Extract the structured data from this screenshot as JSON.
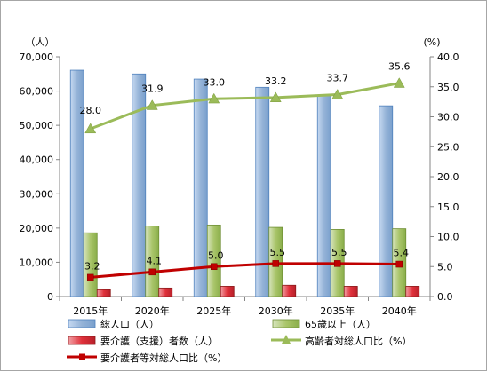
{
  "chart_data": {
    "type": "bar",
    "categories": [
      "2015年",
      "2020年",
      "2025年",
      "2030年",
      "2035年",
      "2040年"
    ],
    "y_left": {
      "unit": "（人）",
      "ylim": [
        0,
        70000
      ],
      "ticks": [
        "0",
        "10,000",
        "20,000",
        "30,000",
        "40,000",
        "50,000",
        "60,000",
        "70,000"
      ]
    },
    "y_right": {
      "unit": "(%)",
      "ylim": [
        0,
        40
      ],
      "ticks": [
        "0.0",
        "5.0",
        "10.0",
        "15.0",
        "20.0",
        "25.0",
        "30.0",
        "35.0",
        "40.0"
      ]
    },
    "grid": false,
    "legend_position": "bottom",
    "series": [
      {
        "name": "総人口（人）",
        "type": "bar",
        "axis": "left",
        "color": "#8fb4e3",
        "values": [
          66100,
          65000,
          63500,
          61100,
          58800,
          55700
        ]
      },
      {
        "name": "65歳以上（人）",
        "type": "bar",
        "axis": "left",
        "color": "#9bbb59",
        "values": [
          18600,
          20600,
          20900,
          20200,
          19600,
          19800
        ]
      },
      {
        "name": "要介護（支援）者数（人）",
        "type": "bar",
        "axis": "left",
        "color": "#e0313b",
        "values": [
          2000,
          2500,
          3000,
          3300,
          3000,
          3000
        ]
      },
      {
        "name": "高齢者対総人口比（%）",
        "type": "line",
        "axis": "right",
        "color": "#9bbb59",
        "marker": "triangle",
        "values": [
          28.0,
          31.9,
          33.0,
          33.2,
          33.7,
          35.6
        ],
        "labels": [
          "28.0",
          "31.9",
          "33.0",
          "33.2",
          "33.7",
          "35.6"
        ]
      },
      {
        "name": "要介護者等対総人口比（%）",
        "type": "line",
        "axis": "right",
        "color": "#c00000",
        "marker": "square",
        "values": [
          3.2,
          4.1,
          5.0,
          5.5,
          5.5,
          5.4
        ],
        "labels": [
          "3.2",
          "4.1",
          "5.0",
          "5.5",
          "5.5",
          "5.4"
        ]
      }
    ]
  }
}
